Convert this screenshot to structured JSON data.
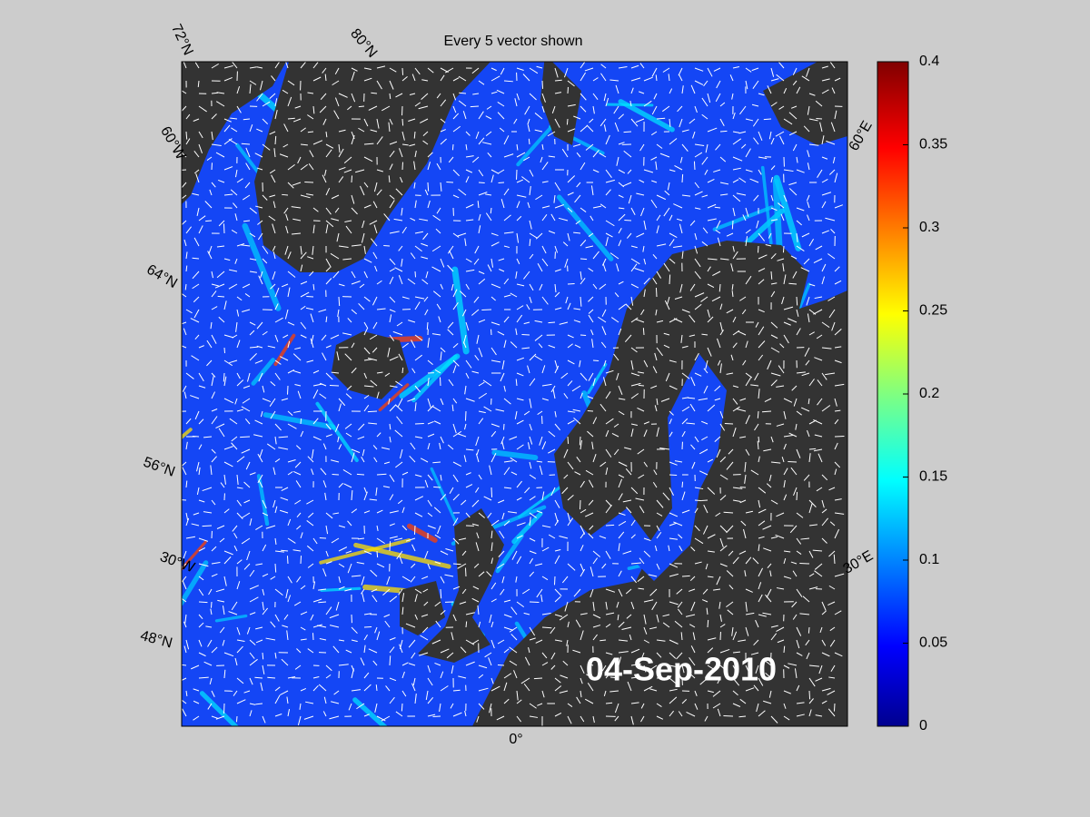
{
  "map": {
    "title": "Every 5 vector shown",
    "date": "04-Sep-2010",
    "graticule_labels": [
      "72°N",
      "80°N",
      "60°W",
      "64°N",
      "56°N",
      "30°W",
      "48°N",
      "0°",
      "30°E",
      "60°E"
    ],
    "colorbar": {
      "lim": [
        0,
        0.4
      ],
      "ticks": [
        0,
        0.05,
        0.1,
        0.15,
        0.2,
        0.25,
        0.3,
        0.35,
        0.4
      ]
    }
  }
}
